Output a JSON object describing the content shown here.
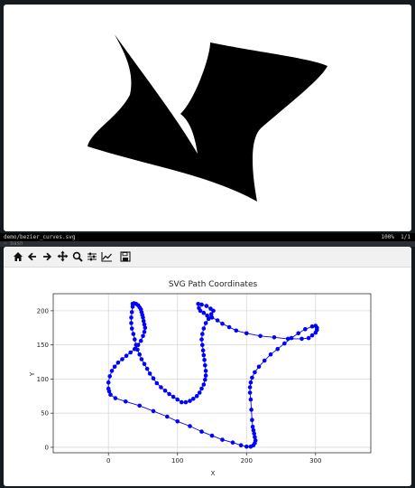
{
  "viewer": {
    "filename": "demo/bezier_curves.svg",
    "zoom": "100%",
    "page": "1/1",
    "terminal_text": "~ bash"
  },
  "toolbar": {
    "buttons": [
      {
        "name": "home-button",
        "icon": "home-icon"
      },
      {
        "name": "back-button",
        "icon": "arrow-left-icon"
      },
      {
        "name": "forward-button",
        "icon": "arrow-right-icon"
      },
      {
        "name": "pan-button",
        "icon": "move-icon"
      },
      {
        "name": "zoom-button",
        "icon": "magnifier-icon"
      },
      {
        "name": "configure-subplots-button",
        "icon": "sliders-icon"
      },
      {
        "name": "edit-axes-button",
        "icon": "chart-line-icon"
      },
      {
        "name": "save-button",
        "icon": "floppy-disk-icon"
      }
    ]
  },
  "chart_data": {
    "type": "line",
    "title": "SVG Path Coordinates",
    "xlabel": "X",
    "ylabel": "Y",
    "xlim": [
      -80,
      380
    ],
    "ylim": [
      -8,
      225
    ],
    "xticks": [
      0,
      100,
      200,
      300
    ],
    "yticks": [
      0,
      50,
      100,
      150,
      200
    ],
    "grid": true,
    "color": "#0000ff",
    "x": [
      35,
      37,
      40,
      43,
      45,
      47,
      48,
      49,
      50,
      51,
      52,
      53,
      52,
      50,
      47,
      43,
      38,
      32,
      26,
      20,
      14,
      9,
      5,
      2,
      0,
      0,
      1,
      3,
      10,
      25,
      45,
      65,
      85,
      100,
      118,
      135,
      150,
      165,
      180,
      192,
      200,
      206,
      210,
      212,
      213,
      212,
      211,
      210,
      209,
      208,
      207,
      206,
      205,
      205,
      206,
      208,
      212,
      218,
      226,
      235,
      245,
      255,
      265,
      275,
      285,
      295,
      300,
      302,
      302,
      300,
      295,
      290,
      280,
      260,
      240,
      220,
      200,
      185,
      175,
      165,
      158,
      150,
      143,
      138,
      133,
      131,
      130,
      135,
      142,
      148,
      152,
      149,
      145,
      141,
      138,
      136,
      135,
      136,
      137,
      138,
      139,
      140,
      141,
      141,
      140,
      138,
      135,
      132,
      128,
      123,
      118,
      112,
      106,
      100,
      94,
      88,
      82,
      76,
      70,
      65,
      60,
      56,
      52,
      48,
      45,
      42,
      40,
      38,
      36,
      34,
      33,
      33,
      34,
      35
    ],
    "y": [
      210,
      211,
      210,
      208,
      205,
      202,
      198,
      194,
      190,
      185,
      180,
      175,
      169,
      163,
      156,
      150,
      144,
      139,
      134,
      129,
      124,
      118,
      112,
      104,
      95,
      86,
      82,
      77,
      72,
      67,
      61,
      53,
      45,
      38,
      31,
      23,
      17,
      11,
      7,
      3,
      1,
      1,
      3,
      6,
      10,
      15,
      20,
      25,
      30,
      40,
      55,
      70,
      80,
      88,
      95,
      102,
      110,
      118,
      127,
      136,
      144,
      152,
      160,
      167,
      173,
      177,
      178,
      175,
      172,
      168,
      164,
      160,
      159,
      159,
      161,
      163,
      167,
      171,
      176,
      181,
      186,
      190,
      193,
      197,
      200,
      204,
      210,
      209,
      207,
      203,
      200,
      195,
      188,
      182,
      174,
      166,
      158,
      150,
      142,
      135,
      128,
      120,
      112,
      105,
      99,
      92,
      86,
      80,
      75,
      71,
      68,
      66,
      66,
      70,
      74,
      78,
      83,
      88,
      94,
      101,
      108,
      115,
      122,
      129,
      136,
      143,
      150,
      158,
      166,
      174,
      182,
      190,
      198,
      206
    ]
  }
}
